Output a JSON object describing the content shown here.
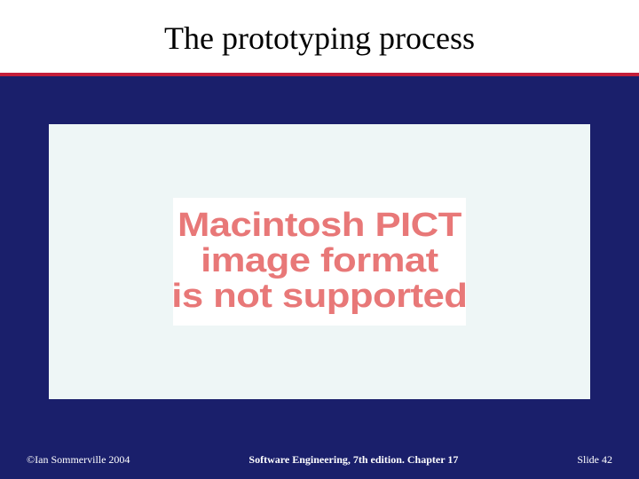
{
  "slide": {
    "title": "The prototyping process",
    "background_color": "#1a1f6b",
    "title_bg_color": "#ffffff",
    "title_underline_color": "#c41e3a",
    "title_fontsize": 36,
    "title_color": "#000000"
  },
  "content": {
    "panel_bg_color": "#eef6f6",
    "error_box_bg": "#ffffff",
    "error_text_color": "#e87878",
    "error_fontsize": 38,
    "line1": "Macintosh PICT",
    "line2": "image format",
    "line3": "is not supported"
  },
  "footer": {
    "copyright": "©Ian Sommerville 2004",
    "center": "Software Engineering, 7th edition. Chapter 17",
    "slide_label": "Slide ",
    "slide_number": "42",
    "text_color": "#ffffff",
    "fontsize": 12
  }
}
